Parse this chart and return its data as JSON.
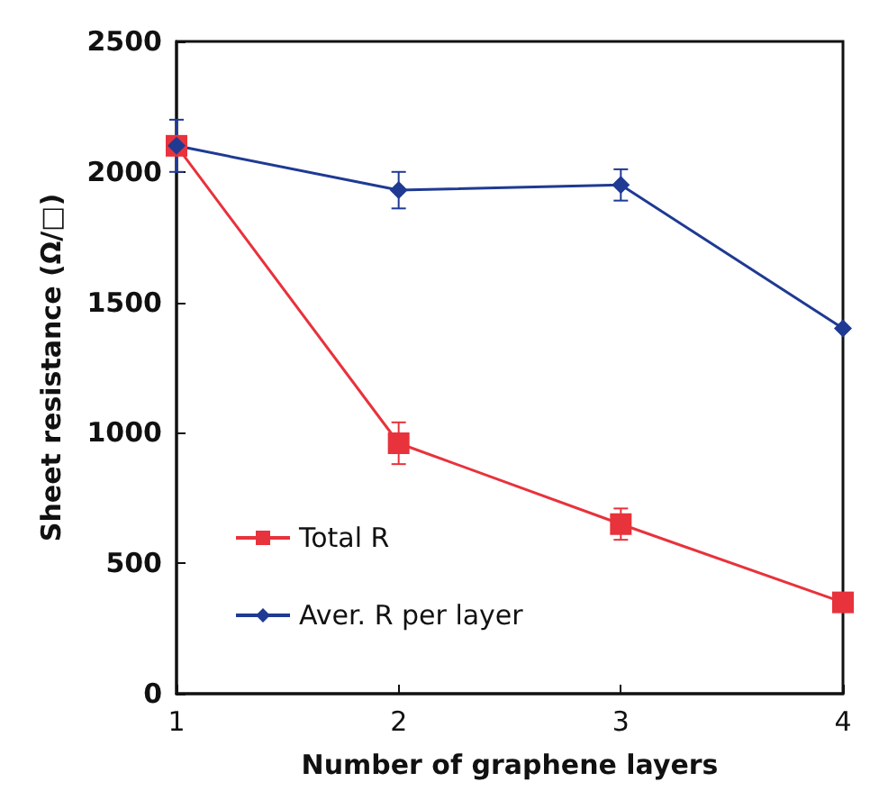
{
  "chart_data": {
    "type": "line",
    "xlabel": "Number of graphene layers",
    "ylabel": "Sheet resistance (Ω/□)",
    "x": [
      1,
      2,
      3,
      4
    ],
    "xlim": [
      1,
      4
    ],
    "xticks": [
      1,
      2,
      3,
      4
    ],
    "ylim": [
      0,
      2500
    ],
    "yticks": [
      0,
      500,
      1000,
      1500,
      2000,
      2500
    ],
    "grid": false,
    "legend": "bottom left",
    "series": [
      {
        "name": "Total R",
        "color": "#e8323c",
        "marker": "square",
        "values": [
          2100,
          960,
          650,
          350
        ],
        "errors": [
          null,
          80,
          60,
          30
        ]
      },
      {
        "name": "Aver. R per layer",
        "color": "#1f3a93",
        "marker": "diamond",
        "values": [
          2100,
          1930,
          1950,
          1400
        ],
        "errors": [
          100,
          70,
          60,
          null
        ]
      }
    ]
  }
}
